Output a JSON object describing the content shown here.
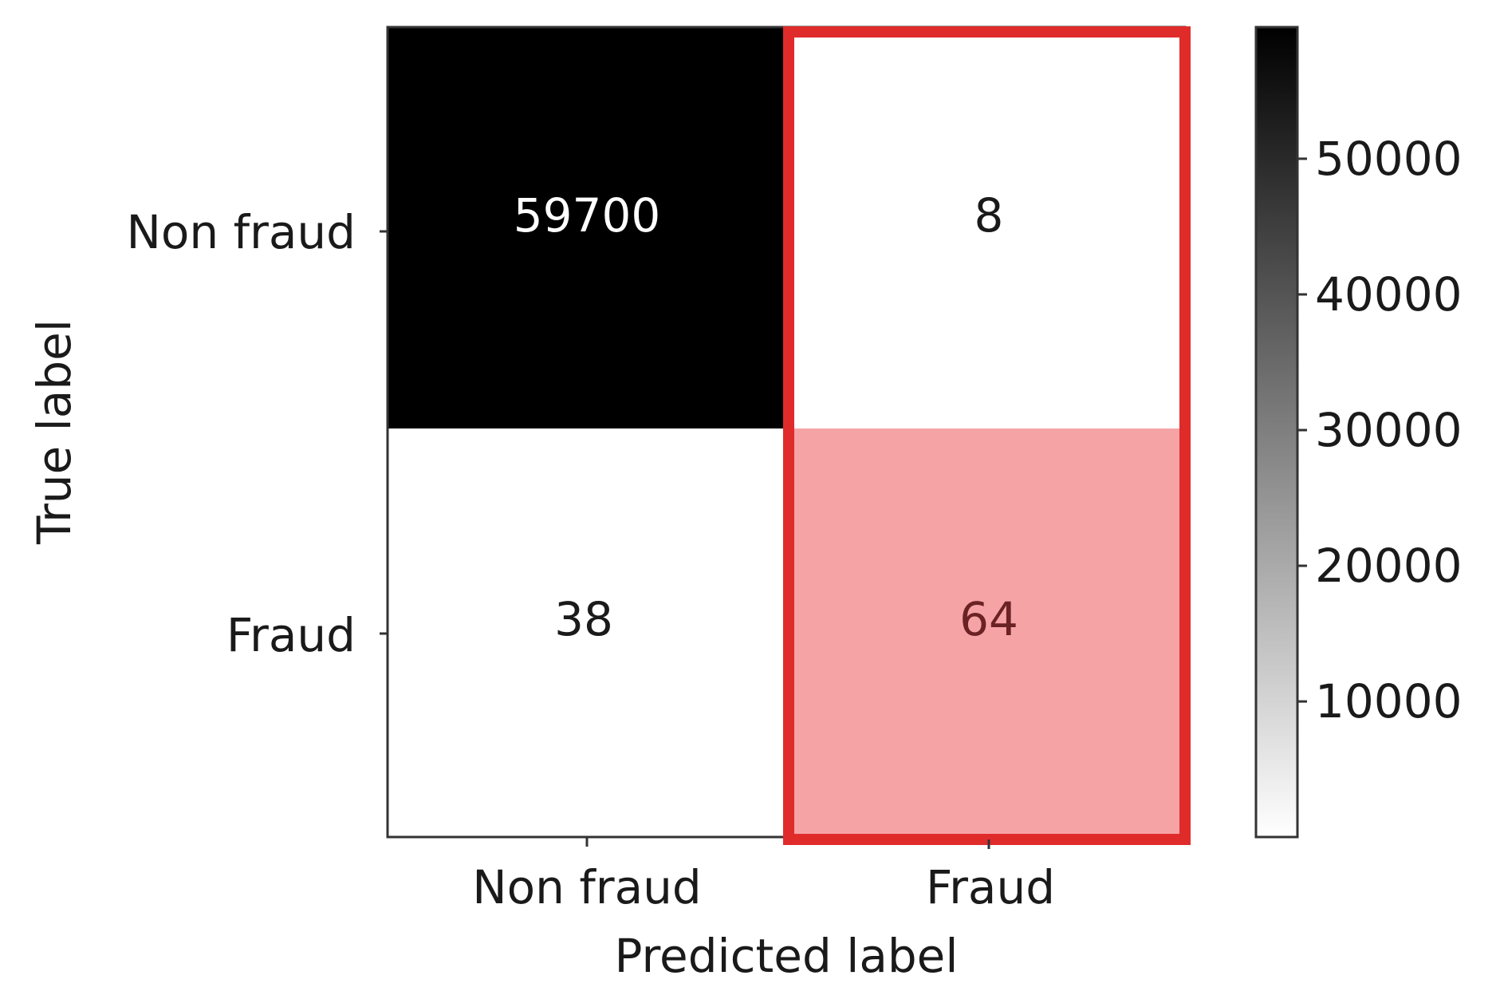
{
  "chart_data": {
    "type": "heatmap",
    "title": "",
    "xlabel": "Predicted label",
    "ylabel": "True label",
    "x_categories": [
      "Non fraud",
      "Fraud"
    ],
    "y_categories": [
      "Non fraud",
      "Fraud"
    ],
    "matrix": [
      [
        59700,
        8
      ],
      [
        38,
        64
      ]
    ],
    "cell_labels": [
      [
        "59700",
        "8"
      ],
      [
        "38",
        "64"
      ]
    ],
    "colormap": "Greys",
    "colorbar": {
      "min": 8,
      "max": 59700,
      "ticks": [
        10000,
        20000,
        30000,
        40000,
        50000
      ],
      "tick_labels": [
        "10000",
        "20000",
        "30000",
        "40000",
        "50000"
      ]
    },
    "highlight": {
      "column": "Fraud",
      "border_color": "#e02b2b",
      "fill_row": "Fraud",
      "fill_color": "#f6a3a6"
    }
  }
}
